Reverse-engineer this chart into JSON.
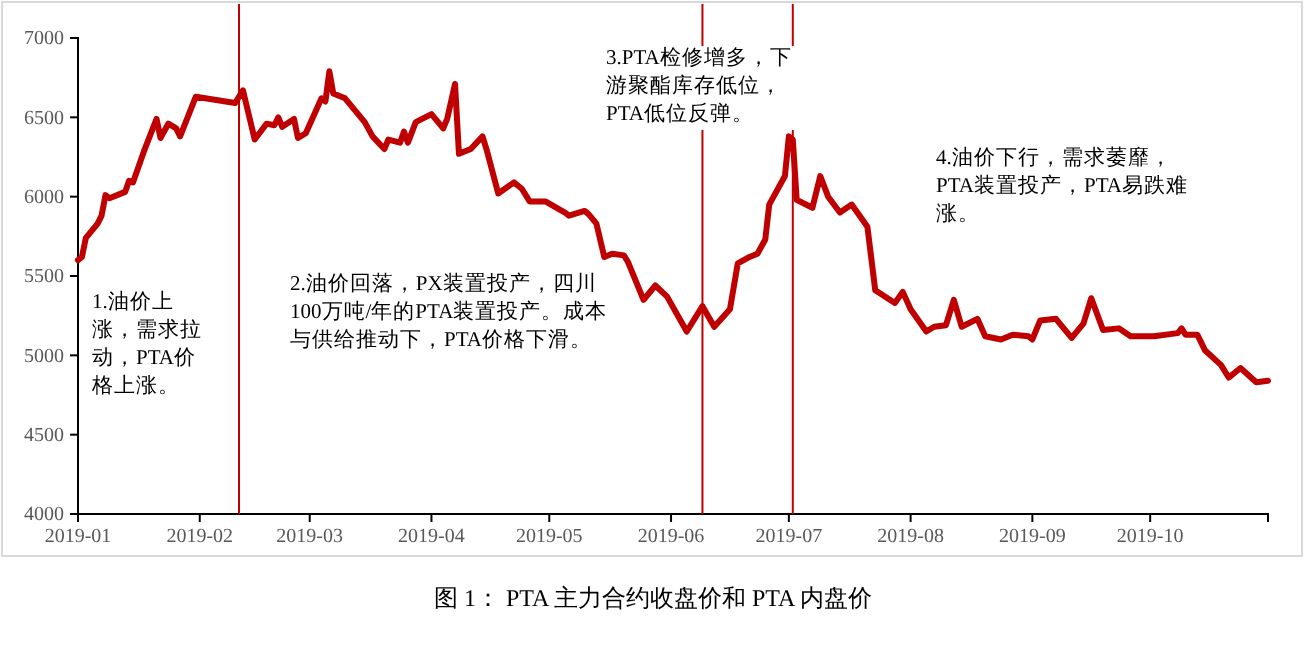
{
  "chart_data": {
    "type": "line",
    "title": "图 1：  PTA 主力合约收盘价和 PTA 内盘价",
    "xlim": [
      "2019-01-01",
      "2019-10-31"
    ],
    "xticks": [
      {
        "value": "2019-01-01",
        "label": "2019-01"
      },
      {
        "value": "2019-02-01",
        "label": "2019-02"
      },
      {
        "value": "2019-03-01",
        "label": "2019-03"
      },
      {
        "value": "2019-04-01",
        "label": "2019-04"
      },
      {
        "value": "2019-05-01",
        "label": "2019-05"
      },
      {
        "value": "2019-06-01",
        "label": "2019-06"
      },
      {
        "value": "2019-07-01",
        "label": "2019-07"
      },
      {
        "value": "2019-08-01",
        "label": "2019-08"
      },
      {
        "value": "2019-09-01",
        "label": "2019-09"
      },
      {
        "value": "2019-10-01",
        "label": "2019-10"
      }
    ],
    "ylim": [
      4000,
      7000
    ],
    "yticks": [
      4000,
      4500,
      5000,
      5500,
      6000,
      6500,
      7000
    ],
    "grid": false,
    "line_style": "solid",
    "marker": "none",
    "x": [
      "2019-01-01",
      "2019-01-02",
      "2019-01-03",
      "2019-01-06",
      "2019-01-07",
      "2019-01-08",
      "2019-01-09",
      "2019-01-13",
      "2019-01-14",
      "2019-01-15",
      "2019-01-18",
      "2019-01-21",
      "2019-01-22",
      "2019-01-24",
      "2019-01-26",
      "2019-01-27",
      "2019-01-31",
      "2019-02-10",
      "2019-02-12",
      "2019-02-15",
      "2019-02-18",
      "2019-02-20",
      "2019-02-21",
      "2019-02-22",
      "2019-02-25",
      "2019-02-26",
      "2019-02-28",
      "2019-03-04",
      "2019-03-05",
      "2019-03-06",
      "2019-03-07",
      "2019-03-10",
      "2019-03-15",
      "2019-03-17",
      "2019-03-20",
      "2019-03-21",
      "2019-03-24",
      "2019-03-25",
      "2019-03-26",
      "2019-03-28",
      "2019-04-01",
      "2019-04-04",
      "2019-04-05",
      "2019-04-07",
      "2019-04-08",
      "2019-04-11",
      "2019-04-14",
      "2019-04-15",
      "2019-04-18",
      "2019-04-22",
      "2019-04-24",
      "2019-04-26",
      "2019-04-30",
      "2019-05-05",
      "2019-05-06",
      "2019-05-10",
      "2019-05-11",
      "2019-05-13",
      "2019-05-15",
      "2019-05-17",
      "2019-05-20",
      "2019-05-21",
      "2019-05-25",
      "2019-05-28",
      "2019-05-31",
      "2019-06-05",
      "2019-06-09",
      "2019-06-12",
      "2019-06-16",
      "2019-06-18",
      "2019-06-21",
      "2019-06-23",
      "2019-06-25",
      "2019-06-26",
      "2019-06-30",
      "2019-07-01",
      "2019-07-02",
      "2019-07-03",
      "2019-07-07",
      "2019-07-09",
      "2019-07-11",
      "2019-07-14",
      "2019-07-17",
      "2019-07-21",
      "2019-07-23",
      "2019-07-28",
      "2019-07-30",
      "2019-08-01",
      "2019-08-05",
      "2019-08-07",
      "2019-08-10",
      "2019-08-12",
      "2019-08-14",
      "2019-08-18",
      "2019-08-20",
      "2019-08-24",
      "2019-08-27",
      "2019-08-31",
      "2019-09-01",
      "2019-09-03",
      "2019-09-07",
      "2019-09-11",
      "2019-09-14",
      "2019-09-16",
      "2019-09-19",
      "2019-09-23",
      "2019-09-26",
      "2019-10-02",
      "2019-10-08",
      "2019-10-09",
      "2019-10-10",
      "2019-10-13",
      "2019-10-15",
      "2019-10-19",
      "2019-10-21",
      "2019-10-24",
      "2019-10-28",
      "2019-10-31"
    ],
    "series": [
      {
        "color": "#c00000",
        "values": [
          5600,
          5620,
          5740,
          5830,
          5880,
          6010,
          5990,
          6030,
          6100,
          6090,
          6300,
          6490,
          6370,
          6460,
          6430,
          6380,
          6630,
          6590,
          6670,
          6360,
          6460,
          6450,
          6500,
          6440,
          6490,
          6370,
          6400,
          6620,
          6600,
          6790,
          6650,
          6620,
          6470,
          6380,
          6300,
          6360,
          6340,
          6410,
          6340,
          6470,
          6520,
          6430,
          6490,
          6710,
          6270,
          6300,
          6380,
          6300,
          6020,
          6090,
          6050,
          5970,
          5970,
          5900,
          5880,
          5910,
          5890,
          5830,
          5620,
          5640,
          5630,
          5590,
          5350,
          5440,
          5370,
          5150,
          5310,
          5180,
          5290,
          5580,
          5620,
          5640,
          5730,
          5950,
          6130,
          6380,
          6360,
          5980,
          5930,
          6130,
          6000,
          5900,
          5950,
          5810,
          5410,
          5330,
          5400,
          5290,
          5150,
          5180,
          5190,
          5350,
          5180,
          5230,
          5120,
          5100,
          5130,
          5120,
          5100,
          5220,
          5230,
          5110,
          5200,
          5360,
          5160,
          5170,
          5120,
          5120,
          5140,
          5170,
          5130,
          5130,
          5030,
          4940,
          4860,
          4920,
          4830,
          4840
        ]
      }
    ],
    "ref_lines": [
      {
        "axis": "x",
        "value": "2019-02-11",
        "color": "#c00000"
      },
      {
        "axis": "x",
        "value": "2019-06-09",
        "color": "#c00000"
      },
      {
        "axis": "x",
        "value": "2019-07-02",
        "color": "#c00000"
      }
    ],
    "annotations": [
      "1.油价上涨，需求拉动，PTA价格上涨。",
      "2.油价回落，PX装置投产，四川100万吨/年的PTA装置投产。成本与供给推动下，PTA价格下滑。",
      "3.PTA检修增多，下游聚酯库存低位，PTA低位反弹。",
      "4.油价下行，需求萎靡，PTA装置投产，PTA易跌难涨。"
    ]
  }
}
